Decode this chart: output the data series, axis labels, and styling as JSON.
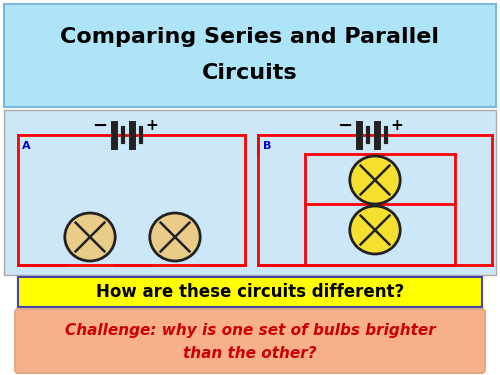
{
  "title_line1": "Comparing Series and Parallel",
  "title_line2": "Circuits",
  "title_bg": "#aee4f8",
  "title_border": "#7ab8d8",
  "circuit_bg": "#cce8f8",
  "question_text": "How are these circuits different?",
  "question_bg": "#ffff00",
  "question_border": "#4444aa",
  "challenge_line1": "Challenge: why is one set of bulbs brighter",
  "challenge_line2": "than the other?",
  "challenge_bg": "#f8b08a",
  "challenge_text_color": "#cc0000",
  "label_A": "A",
  "label_B": "B",
  "wire_color": "#ff0000",
  "battery_color": "#222222",
  "bulb_fill_A": "#e8cc88",
  "bulb_fill_B": "#f5e030",
  "bulb_outline": "#222222"
}
